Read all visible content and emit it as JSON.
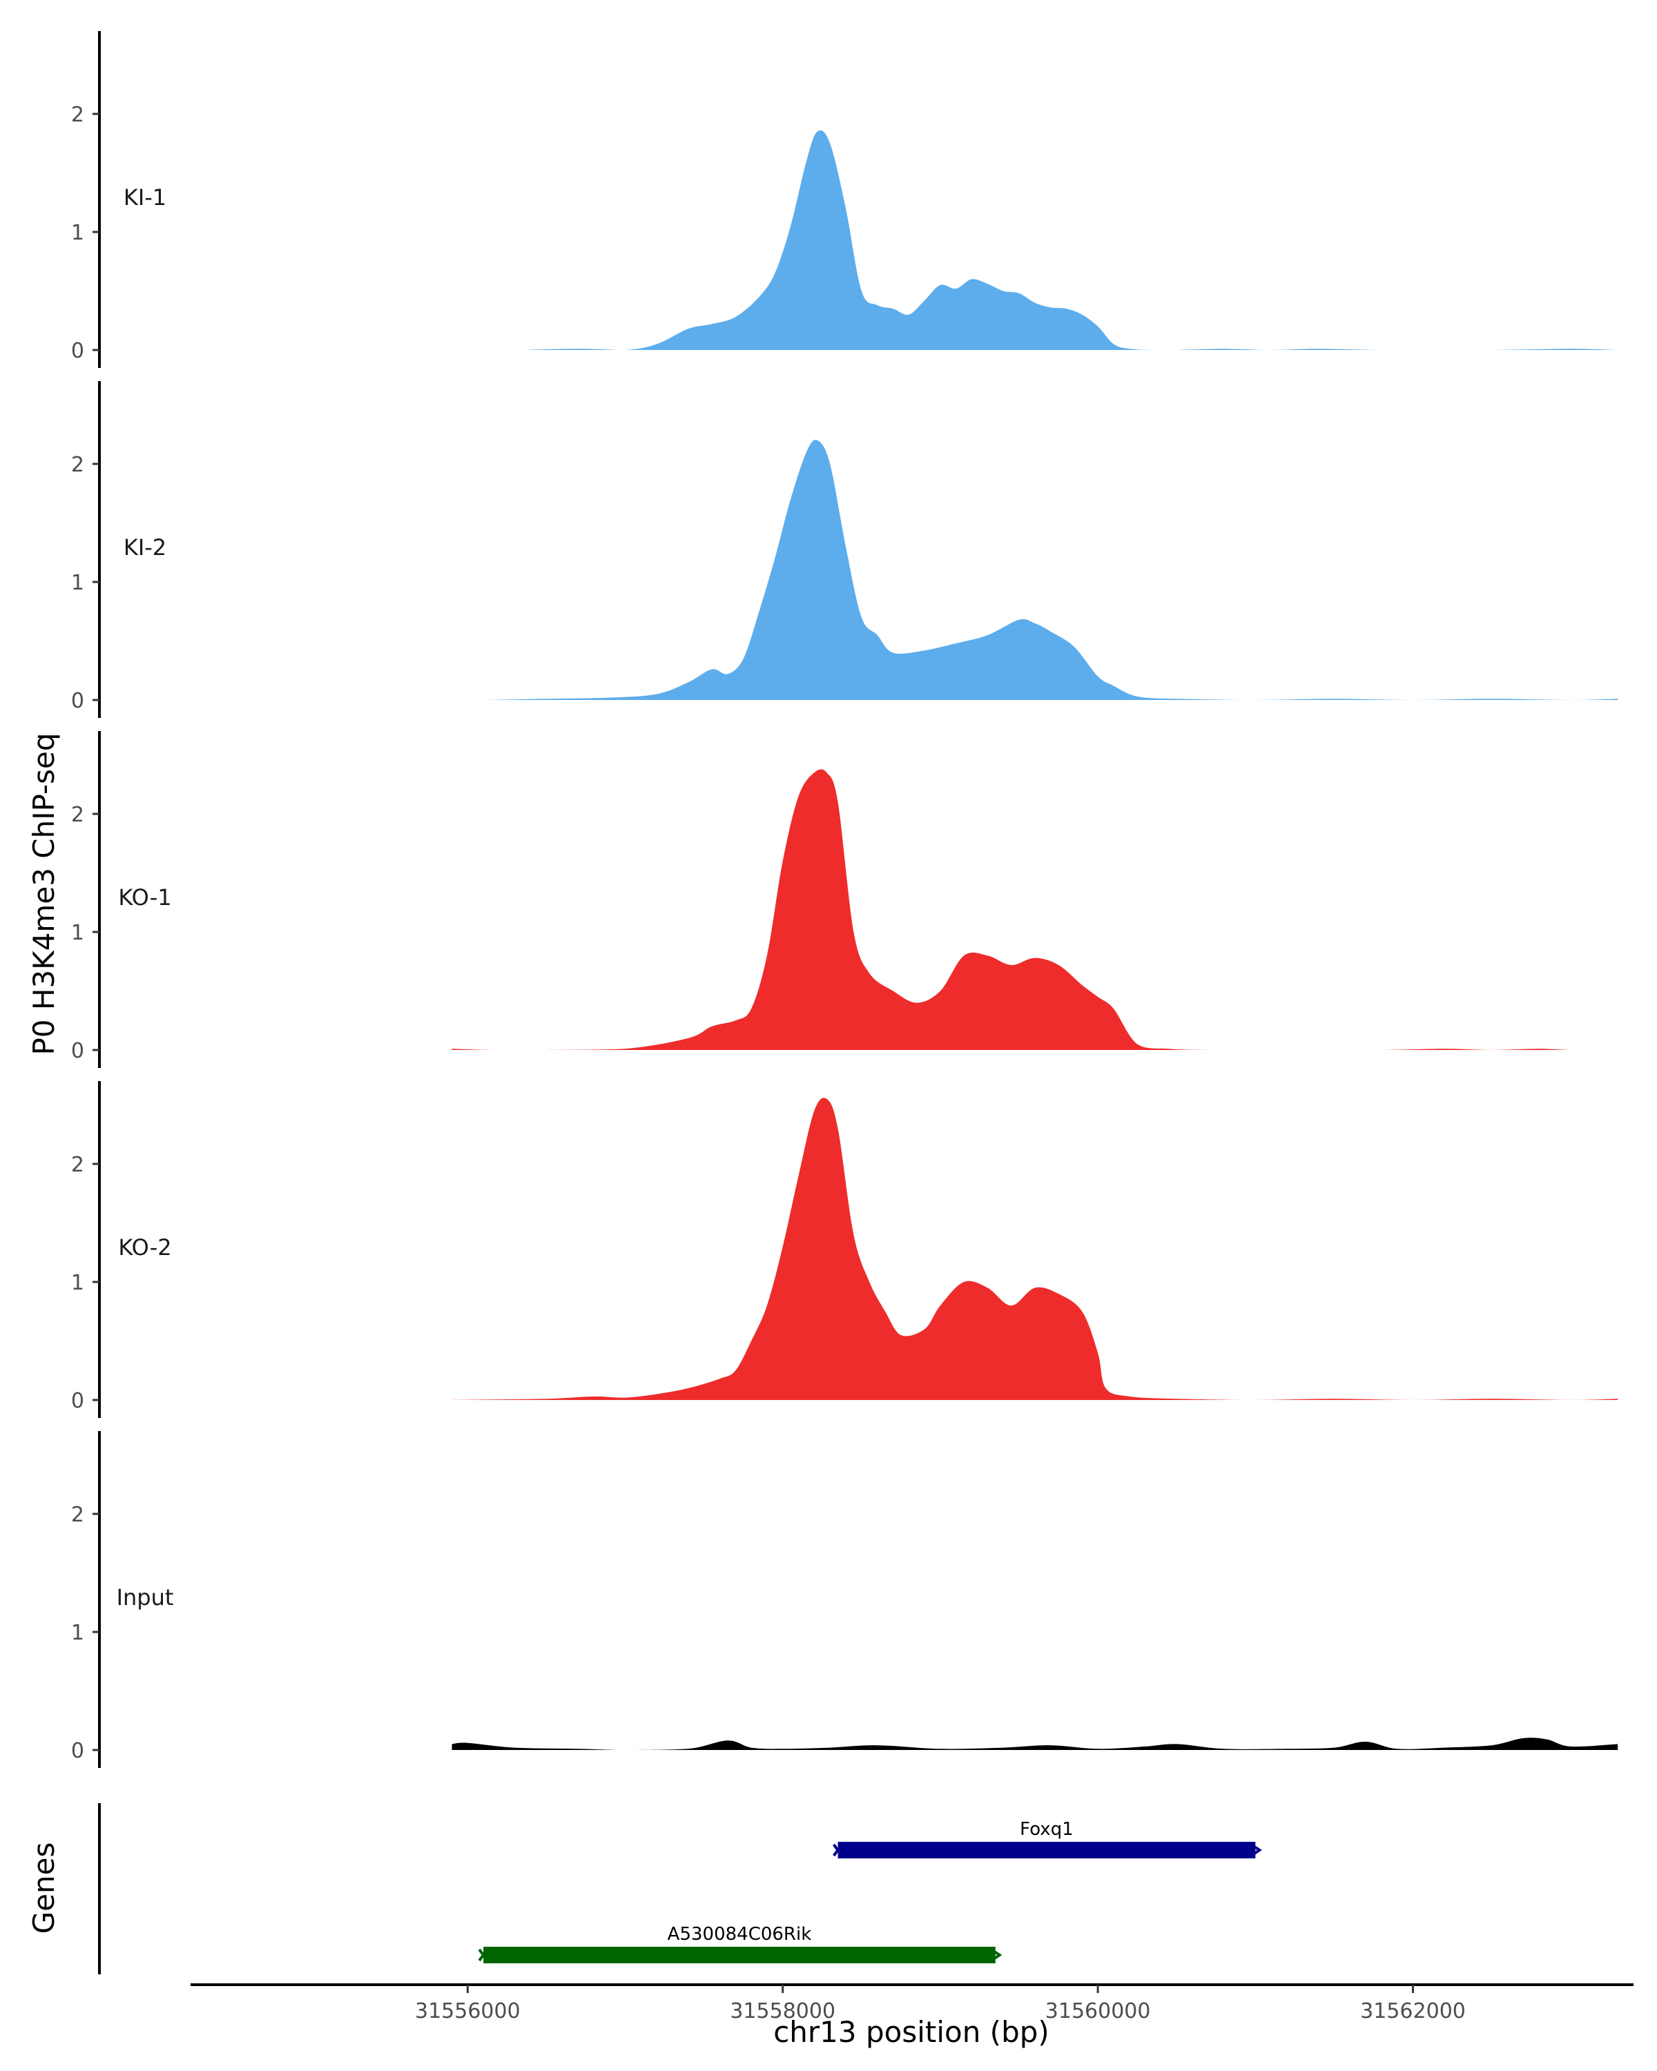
{
  "chart_data": {
    "type": "area",
    "ylabel": "P0 H3K4me3 ChIP-seq",
    "xlabel": "chr13 position (bp)",
    "genes_label": "Genes",
    "xlim": [
      31554250,
      31563400
    ],
    "ylim": [
      0,
      2.7
    ],
    "x_ticks": [
      31556000,
      31558000,
      31560000,
      31562000
    ],
    "x_tick_labels": [
      "31556000",
      "31558000",
      "31560000",
      "31562000"
    ],
    "y_ticks": [
      0,
      1,
      2
    ],
    "y_tick_labels": [
      "0",
      "1",
      "2"
    ],
    "colors": {
      "KI": "#5DADEC",
      "KO": "#EE2C2C",
      "Input": "#000000",
      "gene1": "#00008B",
      "gene2": "#006400"
    },
    "series": [
      {
        "name": "KI-1",
        "color": "#5DADEC",
        "x": [
          31556350,
          31556700,
          31557000,
          31557200,
          31557400,
          31557550,
          31557700,
          31557850,
          31557950,
          31558050,
          31558150,
          31558220,
          31558300,
          31558400,
          31558500,
          31558600,
          31558700,
          31558800,
          31558900,
          31559000,
          31559100,
          31559200,
          31559300,
          31559400,
          31559500,
          31559600,
          31559700,
          31559800,
          31559900,
          31560000,
          31560100,
          31560200,
          31560350,
          31560500,
          31560800,
          31561100,
          31561400,
          31561800,
          31562500,
          31563000,
          31563300
        ],
        "values": [
          0,
          0.01,
          0,
          0.05,
          0.18,
          0.22,
          0.28,
          0.45,
          0.65,
          1.05,
          1.6,
          1.85,
          1.75,
          1.2,
          0.5,
          0.38,
          0.35,
          0.3,
          0.42,
          0.55,
          0.52,
          0.6,
          0.56,
          0.5,
          0.48,
          0.4,
          0.36,
          0.35,
          0.3,
          0.2,
          0.05,
          0.01,
          0,
          0,
          0.01,
          0,
          0.01,
          0,
          0,
          0.01,
          0
        ]
      },
      {
        "name": "KI-2",
        "color": "#5DADEC",
        "x": [
          31556100,
          31556500,
          31556900,
          31557200,
          31557400,
          31557550,
          31557650,
          31557750,
          31557850,
          31557950,
          31558050,
          31558150,
          31558220,
          31558300,
          31558400,
          31558500,
          31558600,
          31558700,
          31558900,
          31559100,
          31559300,
          31559500,
          31559600,
          31559700,
          31559850,
          31560000,
          31560100,
          31560200,
          31560300,
          31560500,
          31561000,
          31561500,
          31562000,
          31562500,
          31563000,
          31563300
        ],
        "values": [
          0,
          0.01,
          0.02,
          0.05,
          0.15,
          0.26,
          0.22,
          0.35,
          0.75,
          1.2,
          1.7,
          2.1,
          2.2,
          2.0,
          1.3,
          0.7,
          0.55,
          0.4,
          0.42,
          0.48,
          0.55,
          0.68,
          0.65,
          0.58,
          0.45,
          0.2,
          0.12,
          0.05,
          0.02,
          0.01,
          0,
          0.01,
          0,
          0.01,
          0,
          0.01
        ]
      },
      {
        "name": "KO-1",
        "color": "#EE2C2C",
        "x": [
          31555900,
          31556150,
          31556500,
          31557000,
          31557400,
          31557550,
          31557700,
          31557800,
          31557900,
          31558000,
          31558100,
          31558200,
          31558280,
          31558350,
          31558450,
          31558550,
          31558700,
          31558850,
          31559000,
          31559150,
          31559300,
          31559450,
          31559600,
          31559750,
          31559900,
          31560000,
          31560100,
          31560250,
          31560450,
          31560700,
          31561200,
          31561800,
          31562200,
          31562500,
          31562800,
          31563000,
          31563300
        ],
        "values": [
          0.01,
          0,
          0,
          0.01,
          0.1,
          0.2,
          0.25,
          0.35,
          0.8,
          1.6,
          2.15,
          2.35,
          2.35,
          2.1,
          1.0,
          0.65,
          0.5,
          0.4,
          0.5,
          0.8,
          0.8,
          0.72,
          0.78,
          0.72,
          0.55,
          0.45,
          0.35,
          0.05,
          0.01,
          0,
          0,
          0,
          0.01,
          0,
          0.01,
          0,
          0
        ]
      },
      {
        "name": "KO-2",
        "color": "#EE2C2C",
        "x": [
          31555900,
          31556500,
          31556800,
          31557000,
          31557200,
          31557400,
          31557600,
          31557700,
          31557800,
          31557900,
          31558000,
          31558100,
          31558200,
          31558280,
          31558350,
          31558450,
          31558550,
          31558650,
          31558750,
          31558900,
          31559000,
          31559150,
          31559300,
          31559450,
          31559600,
          31559750,
          31559900,
          31560000,
          31560050,
          31560200,
          31560500,
          31561000,
          31561500,
          31562000,
          31562500,
          31563000,
          31563300
        ],
        "values": [
          0,
          0.01,
          0.03,
          0.02,
          0.05,
          0.1,
          0.18,
          0.25,
          0.5,
          0.8,
          1.3,
          1.9,
          2.45,
          2.55,
          2.3,
          1.4,
          1.0,
          0.75,
          0.55,
          0.6,
          0.8,
          1.0,
          0.95,
          0.8,
          0.95,
          0.9,
          0.75,
          0.4,
          0.1,
          0.03,
          0.01,
          0,
          0.01,
          0,
          0.01,
          0,
          0.01
        ]
      },
      {
        "name": "Input",
        "color": "#000000",
        "x": [
          31555900,
          31556000,
          31556300,
          31556700,
          31557000,
          31557400,
          31557650,
          31557800,
          31558000,
          31558300,
          31558600,
          31559000,
          31559400,
          31559700,
          31560000,
          31560300,
          31560500,
          31560800,
          31561200,
          31561500,
          31561700,
          31561900,
          31562200,
          31562500,
          31562700,
          31562850,
          31563000,
          31563300
        ],
        "values": [
          0.05,
          0.06,
          0.02,
          0.01,
          0,
          0.01,
          0.08,
          0.02,
          0.01,
          0.02,
          0.04,
          0.01,
          0.02,
          0.04,
          0.01,
          0.03,
          0.05,
          0.01,
          0.01,
          0.02,
          0.07,
          0.01,
          0.02,
          0.04,
          0.1,
          0.09,
          0.03,
          0.05
        ]
      }
    ],
    "genes": [
      {
        "name": "Foxq1",
        "start": 31558350,
        "end": 31561000,
        "strand": "+",
        "color": "#00008B"
      },
      {
        "name": "A530084C06Rik",
        "start": 31556100,
        "end": 31559350,
        "strand": "-",
        "color": "#006400"
      }
    ]
  }
}
